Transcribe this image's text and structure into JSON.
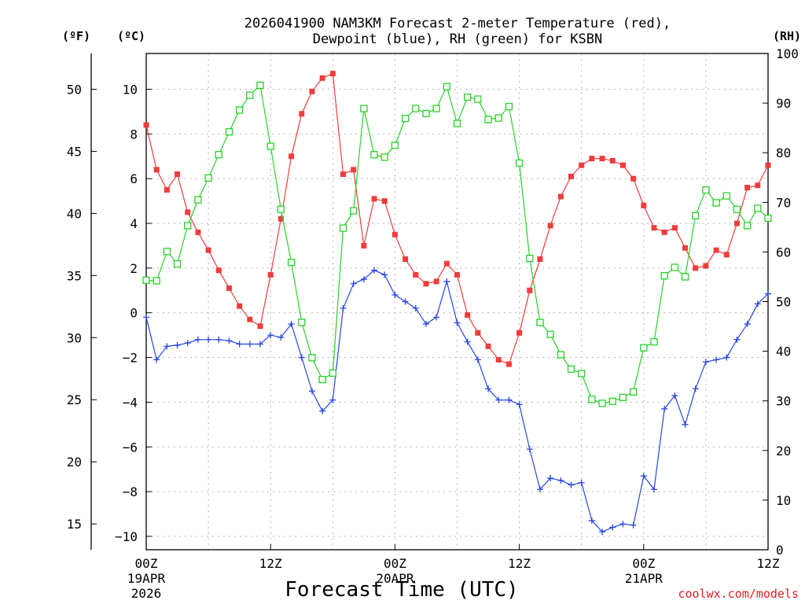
{
  "chart_data": {
    "type": "line",
    "title_line1": "2026041900 NAM3KM Forecast 2-meter Temperature (red),",
    "title_line2": "Dewpoint (blue), RH (green) for KSBN",
    "xlabel": "Forecast Time (UTC)",
    "credit": "coolwx.com/models",
    "unit_labels": {
      "fahrenheit": "(ºF)",
      "celsius": "(ºC)",
      "rh": "(RH)"
    },
    "x_range_hours": [
      0,
      60
    ],
    "celsius_range": [
      -10.6,
      11.6
    ],
    "rh_range": [
      0,
      100
    ],
    "fahrenheit_ticks": [
      "15",
      "20",
      "25",
      "30",
      "35",
      "40",
      "45",
      "50"
    ],
    "celsius_ticks": [
      "−10",
      "−8",
      "−6",
      "−4",
      "−2",
      "0",
      "2",
      "4",
      "6",
      "8",
      "10"
    ],
    "rh_ticks": [
      "0",
      "10",
      "20",
      "30",
      "40",
      "50",
      "60",
      "70",
      "80",
      "90",
      "100"
    ],
    "x_ticks": [
      {
        "hour": 0,
        "line1": "00Z",
        "line2": "19APR",
        "line3": "2026"
      },
      {
        "hour": 12,
        "line1": "12Z",
        "line2": "",
        "line3": ""
      },
      {
        "hour": 24,
        "line1": "00Z",
        "line2": "20APR",
        "line3": ""
      },
      {
        "hour": 36,
        "line1": "12Z",
        "line2": "",
        "line3": ""
      },
      {
        "hour": 48,
        "line1": "00Z",
        "line2": "21APR",
        "line3": ""
      },
      {
        "hour": 60,
        "line1": "12Z",
        "line2": "",
        "line3": ""
      }
    ],
    "colors": {
      "temperature": "#f03c3c",
      "dewpoint": "#2846e6",
      "rh": "#28d228",
      "grid": "#b4b4b4"
    },
    "series": [
      {
        "name": "2-meter Temperature (red)",
        "axis": "celsius",
        "x": [
          0,
          1,
          2,
          3,
          4,
          5,
          6,
          7,
          8,
          9,
          10,
          11,
          12,
          13,
          14,
          15,
          16,
          17,
          18,
          19,
          20,
          21,
          22,
          23,
          24,
          25,
          26,
          27,
          28,
          29,
          30,
          31,
          32,
          33,
          34,
          35,
          36,
          37,
          38,
          39,
          40,
          41,
          42,
          43,
          44,
          45,
          46,
          47,
          48,
          49,
          50,
          51,
          52,
          53,
          54,
          55,
          56,
          57,
          58,
          59,
          60
        ],
        "values": [
          8.4,
          6.4,
          5.5,
          6.2,
          4.5,
          3.6,
          2.8,
          1.9,
          1.1,
          0.3,
          -0.3,
          -0.6,
          1.7,
          4.2,
          7.0,
          8.9,
          9.9,
          10.5,
          10.7,
          6.2,
          6.4,
          3.0,
          5.1,
          5.0,
          3.5,
          2.4,
          1.7,
          1.3,
          1.4,
          2.2,
          1.7,
          -0.1,
          -0.9,
          -1.5,
          -2.1,
          -2.3,
          -0.9,
          1.0,
          2.4,
          3.9,
          5.2,
          6.1,
          6.6,
          6.9,
          6.9,
          6.8,
          6.6,
          6.0,
          4.8,
          3.8,
          3.6,
          3.8,
          2.9,
          2.0,
          2.1,
          2.8,
          2.6,
          4.0,
          5.6,
          5.7,
          6.6
        ]
      },
      {
        "name": "Dewpoint (blue)",
        "axis": "celsius",
        "x": [
          0,
          1,
          2,
          3,
          4,
          5,
          6,
          7,
          8,
          9,
          10,
          11,
          12,
          13,
          14,
          15,
          16,
          17,
          18,
          19,
          20,
          21,
          22,
          23,
          24,
          25,
          26,
          27,
          28,
          29,
          30,
          31,
          32,
          33,
          34,
          35,
          36,
          37,
          38,
          39,
          40,
          41,
          42,
          43,
          44,
          45,
          46,
          47,
          48,
          49,
          50,
          51,
          52,
          53,
          54,
          55,
          56,
          57,
          58,
          59,
          60
        ],
        "values": [
          -0.2,
          -2.1,
          -1.5,
          -1.45,
          -1.35,
          -1.2,
          -1.2,
          -1.2,
          -1.25,
          -1.4,
          -1.4,
          -1.4,
          -1.0,
          -1.1,
          -0.5,
          -2.0,
          -3.5,
          -4.4,
          -3.9,
          0.2,
          1.3,
          1.5,
          1.9,
          1.7,
          0.8,
          0.5,
          0.2,
          -0.5,
          -0.2,
          1.4,
          -0.45,
          -1.3,
          -2.1,
          -3.4,
          -3.9,
          -3.9,
          -4.1,
          -6.1,
          -7.9,
          -7.4,
          -7.5,
          -7.7,
          -7.6,
          -9.3,
          -9.8,
          -9.6,
          -9.45,
          -9.5,
          -7.3,
          -7.9,
          -4.3,
          -3.7,
          -5.0,
          -3.4,
          -2.2,
          -2.1,
          -2.0,
          -1.2,
          -0.5,
          0.4,
          0.85
        ]
      },
      {
        "name": "RH (green)",
        "axis": "rh",
        "x": [
          0,
          1,
          2,
          3,
          4,
          5,
          6,
          7,
          8,
          9,
          10,
          11,
          12,
          13,
          14,
          15,
          16,
          17,
          18,
          19,
          20,
          21,
          22,
          23,
          24,
          25,
          26,
          27,
          28,
          29,
          30,
          31,
          32,
          33,
          34,
          35,
          36,
          37,
          38,
          39,
          40,
          41,
          42,
          43,
          44,
          45,
          46,
          47,
          48,
          49,
          50,
          51,
          52,
          53,
          54,
          55,
          56,
          57,
          58,
          59,
          60
        ],
        "values": [
          54.3,
          54.2,
          60.1,
          57.6,
          65.3,
          70.5,
          74.9,
          79.6,
          84.2,
          88.6,
          91.6,
          93.6,
          81.3,
          68.6,
          57.9,
          45.8,
          38.7,
          34.3,
          35.6,
          64.8,
          68.3,
          88.9,
          79.6,
          79.1,
          81.5,
          86.9,
          88.9,
          87.9,
          88.9,
          93.3,
          85.9,
          91.2,
          90.8,
          86.7,
          87.0,
          89.3,
          77.9,
          58.7,
          45.8,
          43.4,
          39.3,
          36.4,
          35.5,
          30.3,
          29.5,
          29.9,
          30.7,
          31.8,
          40.7,
          41.9,
          55.2,
          56.9,
          55.0,
          67.3,
          72.5,
          69.9,
          71.3,
          68.6,
          65.3,
          68.8,
          66.8
        ]
      }
    ]
  }
}
